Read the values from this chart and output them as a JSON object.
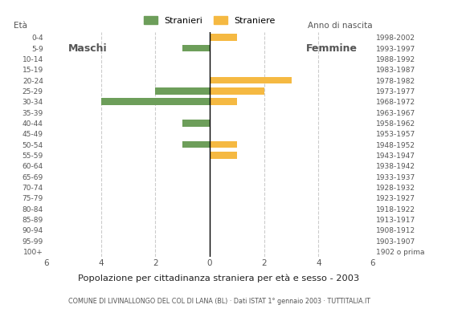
{
  "age_groups": [
    "100+",
    "95-99",
    "90-94",
    "85-89",
    "80-84",
    "75-79",
    "70-74",
    "65-69",
    "60-64",
    "55-59",
    "50-54",
    "45-49",
    "40-44",
    "35-39",
    "30-34",
    "25-29",
    "20-24",
    "15-19",
    "10-14",
    "5-9",
    "0-4"
  ],
  "birth_years": [
    "1902 o prima",
    "1903-1907",
    "1908-1912",
    "1913-1917",
    "1918-1922",
    "1923-1927",
    "1928-1932",
    "1933-1937",
    "1938-1942",
    "1943-1947",
    "1948-1952",
    "1953-1957",
    "1958-1962",
    "1963-1967",
    "1968-1972",
    "1973-1977",
    "1978-1982",
    "1983-1987",
    "1988-1992",
    "1993-1997",
    "1998-2002"
  ],
  "males": [
    0,
    0,
    0,
    0,
    0,
    0,
    0,
    0,
    0,
    0,
    1,
    0,
    1,
    0,
    4,
    2,
    0,
    0,
    0,
    1,
    0
  ],
  "females": [
    0,
    0,
    0,
    0,
    0,
    0,
    0,
    0,
    0,
    1,
    1,
    0,
    0,
    0,
    1,
    2,
    3,
    0,
    0,
    0,
    1
  ],
  "male_color": "#6d9e5a",
  "female_color": "#f5b942",
  "title": "Popolazione per cittadinanza straniera per età e sesso - 2003",
  "subtitle": "COMUNE DI LIVINALLONGO DEL COL DI LANA (BL) · Dati ISTAT 1° gennaio 2003 · TUTTITALIA.IT",
  "legend_male": "Stranieri",
  "legend_female": "Straniere",
  "label_maschi": "Maschi",
  "label_femmine": "Femmine",
  "label_eta": "Età",
  "label_anno": "Anno di nascita",
  "xlim": 6,
  "grid_color": "#cccccc",
  "background_color": "#ffffff",
  "text_color": "#555555"
}
